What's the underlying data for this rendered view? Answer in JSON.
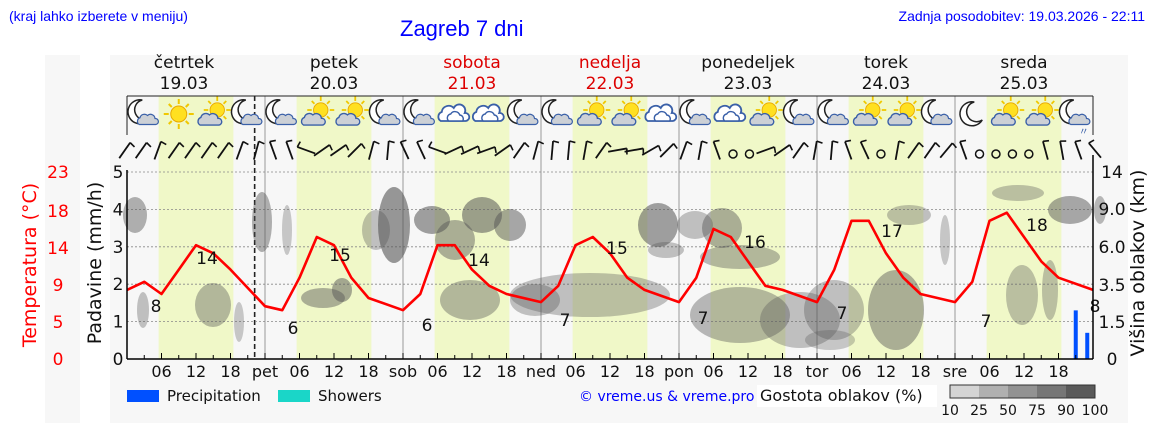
{
  "header": {
    "left_note": "(kraj lahko izberete v meniju)",
    "title": "Zagreb 7 dni",
    "updated": "Zadnja posodobitev: 19.03.2026 - 22:11"
  },
  "days": [
    {
      "name": "četrtek",
      "date": "19.03",
      "weekend": false
    },
    {
      "name": "petek",
      "date": "20.03",
      "weekend": false
    },
    {
      "name": "sobota",
      "date": "21.03",
      "weekend": true
    },
    {
      "name": "nedelja",
      "date": "22.03",
      "weekend": true
    },
    {
      "name": "ponedeljek",
      "date": "23.03",
      "weekend": false
    },
    {
      "name": "torek",
      "date": "24.03",
      "weekend": false
    },
    {
      "name": "sreda",
      "date": "25.03",
      "weekend": false
    }
  ],
  "x_ticks": [
    "06",
    "12",
    "18",
    "pet",
    "06",
    "12",
    "18",
    "sob",
    "06",
    "12",
    "18",
    "ned",
    "06",
    "12",
    "18",
    "pon",
    "06",
    "12",
    "18",
    "tor",
    "06",
    "12",
    "18",
    "sre",
    "06",
    "12",
    "18"
  ],
  "axes": {
    "temp_label": "Temperatura (°C)",
    "temp_ticks": [
      "0",
      "5",
      "9",
      "14",
      "18",
      "23"
    ],
    "precip_label": "Padavine (mm/h)",
    "precip_ticks": [
      "0",
      "1",
      "2",
      "3",
      "4",
      "5"
    ],
    "cloud_label": "Višina oblakov (km)",
    "cloud_ticks": [
      "0",
      "1.5",
      "3.5",
      "6.0",
      "9.0",
      "14"
    ]
  },
  "legend": {
    "precipitation": "Precipitation",
    "showers": "Showers",
    "copyright": "© vreme.us & vreme.pro",
    "cloud_density_label": "Gostota oblakov (%)",
    "cloud_density_ticks": [
      "10",
      "25",
      "50",
      "75",
      "90",
      "100"
    ]
  },
  "colors": {
    "temp_line": "#ff0000",
    "precipitation": "#0050ff",
    "showers": "#1ad6c8",
    "daylight": "#f0f8c8",
    "title_blue": "#0000ff",
    "weekend_red": "#dd0000"
  },
  "weather_icons": [
    "moon-cloud",
    "sun",
    "sun-cloud",
    "moon-cloud",
    "moon-cloud",
    "sun-cloud",
    "sun-cloud",
    "moon-cloud",
    "moon-cloud",
    "cloud",
    "cloud",
    "moon-cloud",
    "moon-cloud",
    "sun-cloud",
    "sun-cloud",
    "cloud",
    "moon-cloud",
    "cloud",
    "sun-cloud",
    "moon-cloud",
    "moon-cloud",
    "sun-cloud",
    "sun-cloud",
    "moon-cloud",
    "moon",
    "sun-cloud",
    "sun-cloud",
    "moon-cloud-rain"
  ],
  "chart_data": {
    "type": "line",
    "title": "Zagreb 7 dni",
    "xlabel": "",
    "ylabel": "Temperatura (°C) / Padavine (mm/h)",
    "y2label": "Višina oblakov (km)",
    "x_range": [
      "19.03 00:00",
      "25.03 24:00"
    ],
    "series": [
      {
        "name": "Temperature (°C)",
        "x_hours": [
          0,
          3,
          6,
          9,
          12,
          15,
          18,
          24,
          27,
          30,
          33,
          36,
          39,
          42,
          48,
          51,
          54,
          57,
          60,
          63,
          66,
          72,
          75,
          78,
          81,
          84,
          87,
          90,
          96,
          99,
          102,
          105,
          108,
          111,
          114,
          120,
          123,
          126,
          129,
          132,
          135,
          138,
          144,
          147,
          150,
          153,
          156,
          159,
          162,
          168
        ],
        "values": [
          8.5,
          9.5,
          8,
          11,
          14,
          13,
          11,
          6.5,
          6,
          10,
          15,
          14,
          10,
          7.5,
          6,
          8,
          14,
          14,
          11,
          9,
          8,
          7,
          9,
          14,
          15,
          13,
          10,
          8.5,
          7,
          10,
          16,
          15,
          12,
          9,
          8.5,
          7,
          11,
          17,
          17,
          13,
          10,
          8,
          7,
          9.5,
          17,
          18,
          15,
          12,
          10,
          8.5
        ]
      },
      {
        "name": "Precipitation (mm/h)",
        "x_hours": [
          165,
          167
        ],
        "values": [
          1.3,
          0.7
        ]
      }
    ],
    "annotations": {
      "daily_min": [
        8,
        6,
        6,
        7,
        7,
        7,
        7
      ],
      "daily_max": [
        14,
        15,
        14,
        15,
        16,
        17,
        18
      ],
      "end_value": 8
    },
    "ylim_temp": [
      0,
      23
    ],
    "ylim_precip": [
      0,
      5
    ],
    "y2_ticks_km": [
      0,
      1.5,
      3.5,
      6.0,
      9.0,
      14
    ],
    "grid": true,
    "legend_position": "bottom"
  }
}
